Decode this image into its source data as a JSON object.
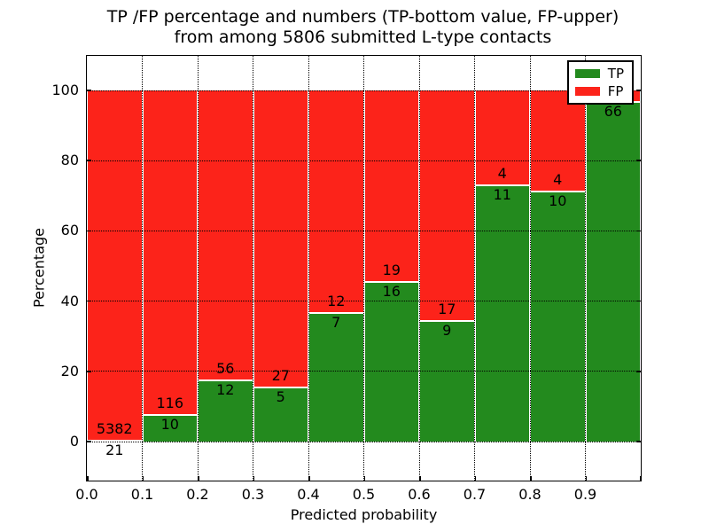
{
  "chart_data": {
    "type": "bar",
    "stacked": true,
    "title_line1": "TP /FP percentage and numbers (TP-bottom value, FP-upper)",
    "title_line2": "from among 5806 submitted L-type contacts",
    "xlabel": "Predicted probability",
    "ylabel": "Percentage",
    "xlim": [
      0.0,
      1.0
    ],
    "bin_width": 0.1,
    "x_tick_labels": [
      "0.0",
      "0.1",
      "0.2",
      "0.3",
      "0.4",
      "0.5",
      "0.6",
      "0.7",
      "0.8",
      "0.9"
    ],
    "y_ticks": [
      0,
      20,
      40,
      60,
      80,
      100
    ],
    "grid": "dotted black, horizontal and vertical, drawn over bars",
    "legend": {
      "position": "upper right",
      "entries": [
        {
          "label": "TP",
          "color": "#238a1e"
        },
        {
          "label": "FP",
          "color": "#fc231a"
        }
      ]
    },
    "bars": [
      {
        "bin": "0.0-0.1",
        "tp_count": 21,
        "fp_count": 5382,
        "tp_pct": 0.39,
        "fp_pct": 99.61
      },
      {
        "bin": "0.1-0.2",
        "tp_count": 10,
        "fp_count": 116,
        "tp_pct": 7.94,
        "fp_pct": 92.06
      },
      {
        "bin": "0.2-0.3",
        "tp_count": 12,
        "fp_count": 56,
        "tp_pct": 17.65,
        "fp_pct": 82.35
      },
      {
        "bin": "0.3-0.4",
        "tp_count": 5,
        "fp_count": 27,
        "tp_pct": 15.63,
        "fp_pct": 84.37
      },
      {
        "bin": "0.4-0.5",
        "tp_count": 7,
        "fp_count": 12,
        "tp_pct": 36.84,
        "fp_pct": 63.16
      },
      {
        "bin": "0.5-0.6",
        "tp_count": 16,
        "fp_count": 19,
        "tp_pct": 45.71,
        "fp_pct": 54.29
      },
      {
        "bin": "0.6-0.7",
        "tp_count": 9,
        "fp_count": 17,
        "tp_pct": 34.62,
        "fp_pct": 65.38
      },
      {
        "bin": "0.7-0.8",
        "tp_count": 11,
        "fp_count": 4,
        "tp_pct": 73.33,
        "fp_pct": 26.67
      },
      {
        "bin": "0.8-0.9",
        "tp_count": 10,
        "fp_count": 4,
        "tp_pct": 71.43,
        "fp_pct": 28.57
      },
      {
        "bin": "0.9-1.0",
        "tp_count": 66,
        "fp_count": null,
        "tp_pct": 97.06,
        "fp_pct": 2.94
      }
    ],
    "note": "FP count label of last bin is hidden behind the legend box"
  },
  "colors": {
    "tp_green": "#238a1e",
    "fp_red": "#fc231a",
    "grid": "#000000",
    "background": "#ffffff",
    "text": "#000000"
  }
}
